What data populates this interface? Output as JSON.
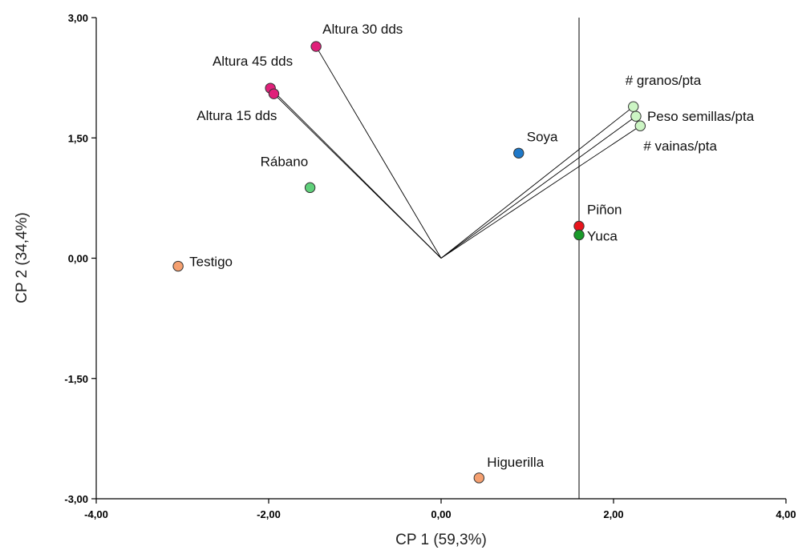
{
  "chart_data": {
    "type": "scatter",
    "subtype": "biplot",
    "xlabel": "CP 1 (59,3%)",
    "ylabel": "CP 2 (34,4%)",
    "xlim": [
      -4,
      4
    ],
    "ylim": [
      -3,
      3
    ],
    "x_ticks": [
      -4,
      -2,
      0,
      2,
      4
    ],
    "y_ticks": [
      -3,
      -1.5,
      0,
      1.5,
      3
    ],
    "x_tick_labels": [
      "-4,00",
      "-2,00",
      "0,00",
      "2,00",
      "4,00"
    ],
    "y_tick_labels": [
      "-3,00",
      "-1,50",
      "0,00",
      "1,50",
      "3,00"
    ],
    "grid": false,
    "reference_line_x": 1.6,
    "vectors": [
      {
        "label": "Altura 30 dds",
        "x": -1.45,
        "y": 2.64,
        "color": "#e0207a"
      },
      {
        "label": "Altura 45 dds",
        "x": -1.98,
        "y": 2.12,
        "color": "#e0207a"
      },
      {
        "label": "Altura 15 dds",
        "x": -1.94,
        "y": 2.05,
        "color": "#e0207a"
      },
      {
        "label": "# granos/pta",
        "x": 2.23,
        "y": 1.89,
        "color": "#ccf5c4"
      },
      {
        "label": "Peso semillas/pta",
        "x": 2.26,
        "y": 1.77,
        "color": "#ccf5c4"
      },
      {
        "label": "# vainas/pta",
        "x": 2.31,
        "y": 1.65,
        "color": "#ccf5c4"
      }
    ],
    "points": [
      {
        "label": "Soya",
        "x": 0.9,
        "y": 1.31,
        "color": "#1f78c8"
      },
      {
        "label": "Rábano",
        "x": -1.52,
        "y": 0.88,
        "color": "#5fd07a"
      },
      {
        "label": "Piñon",
        "x": 1.6,
        "y": 0.4,
        "color": "#e8141c"
      },
      {
        "label": "Yuca",
        "x": 1.6,
        "y": 0.29,
        "color": "#1a9a2a"
      },
      {
        "label": "Testigo",
        "x": -3.05,
        "y": -0.1,
        "color": "#f5a070"
      },
      {
        "label": "Higuerilla",
        "x": 0.44,
        "y": -2.74,
        "color": "#f5a070"
      }
    ]
  }
}
